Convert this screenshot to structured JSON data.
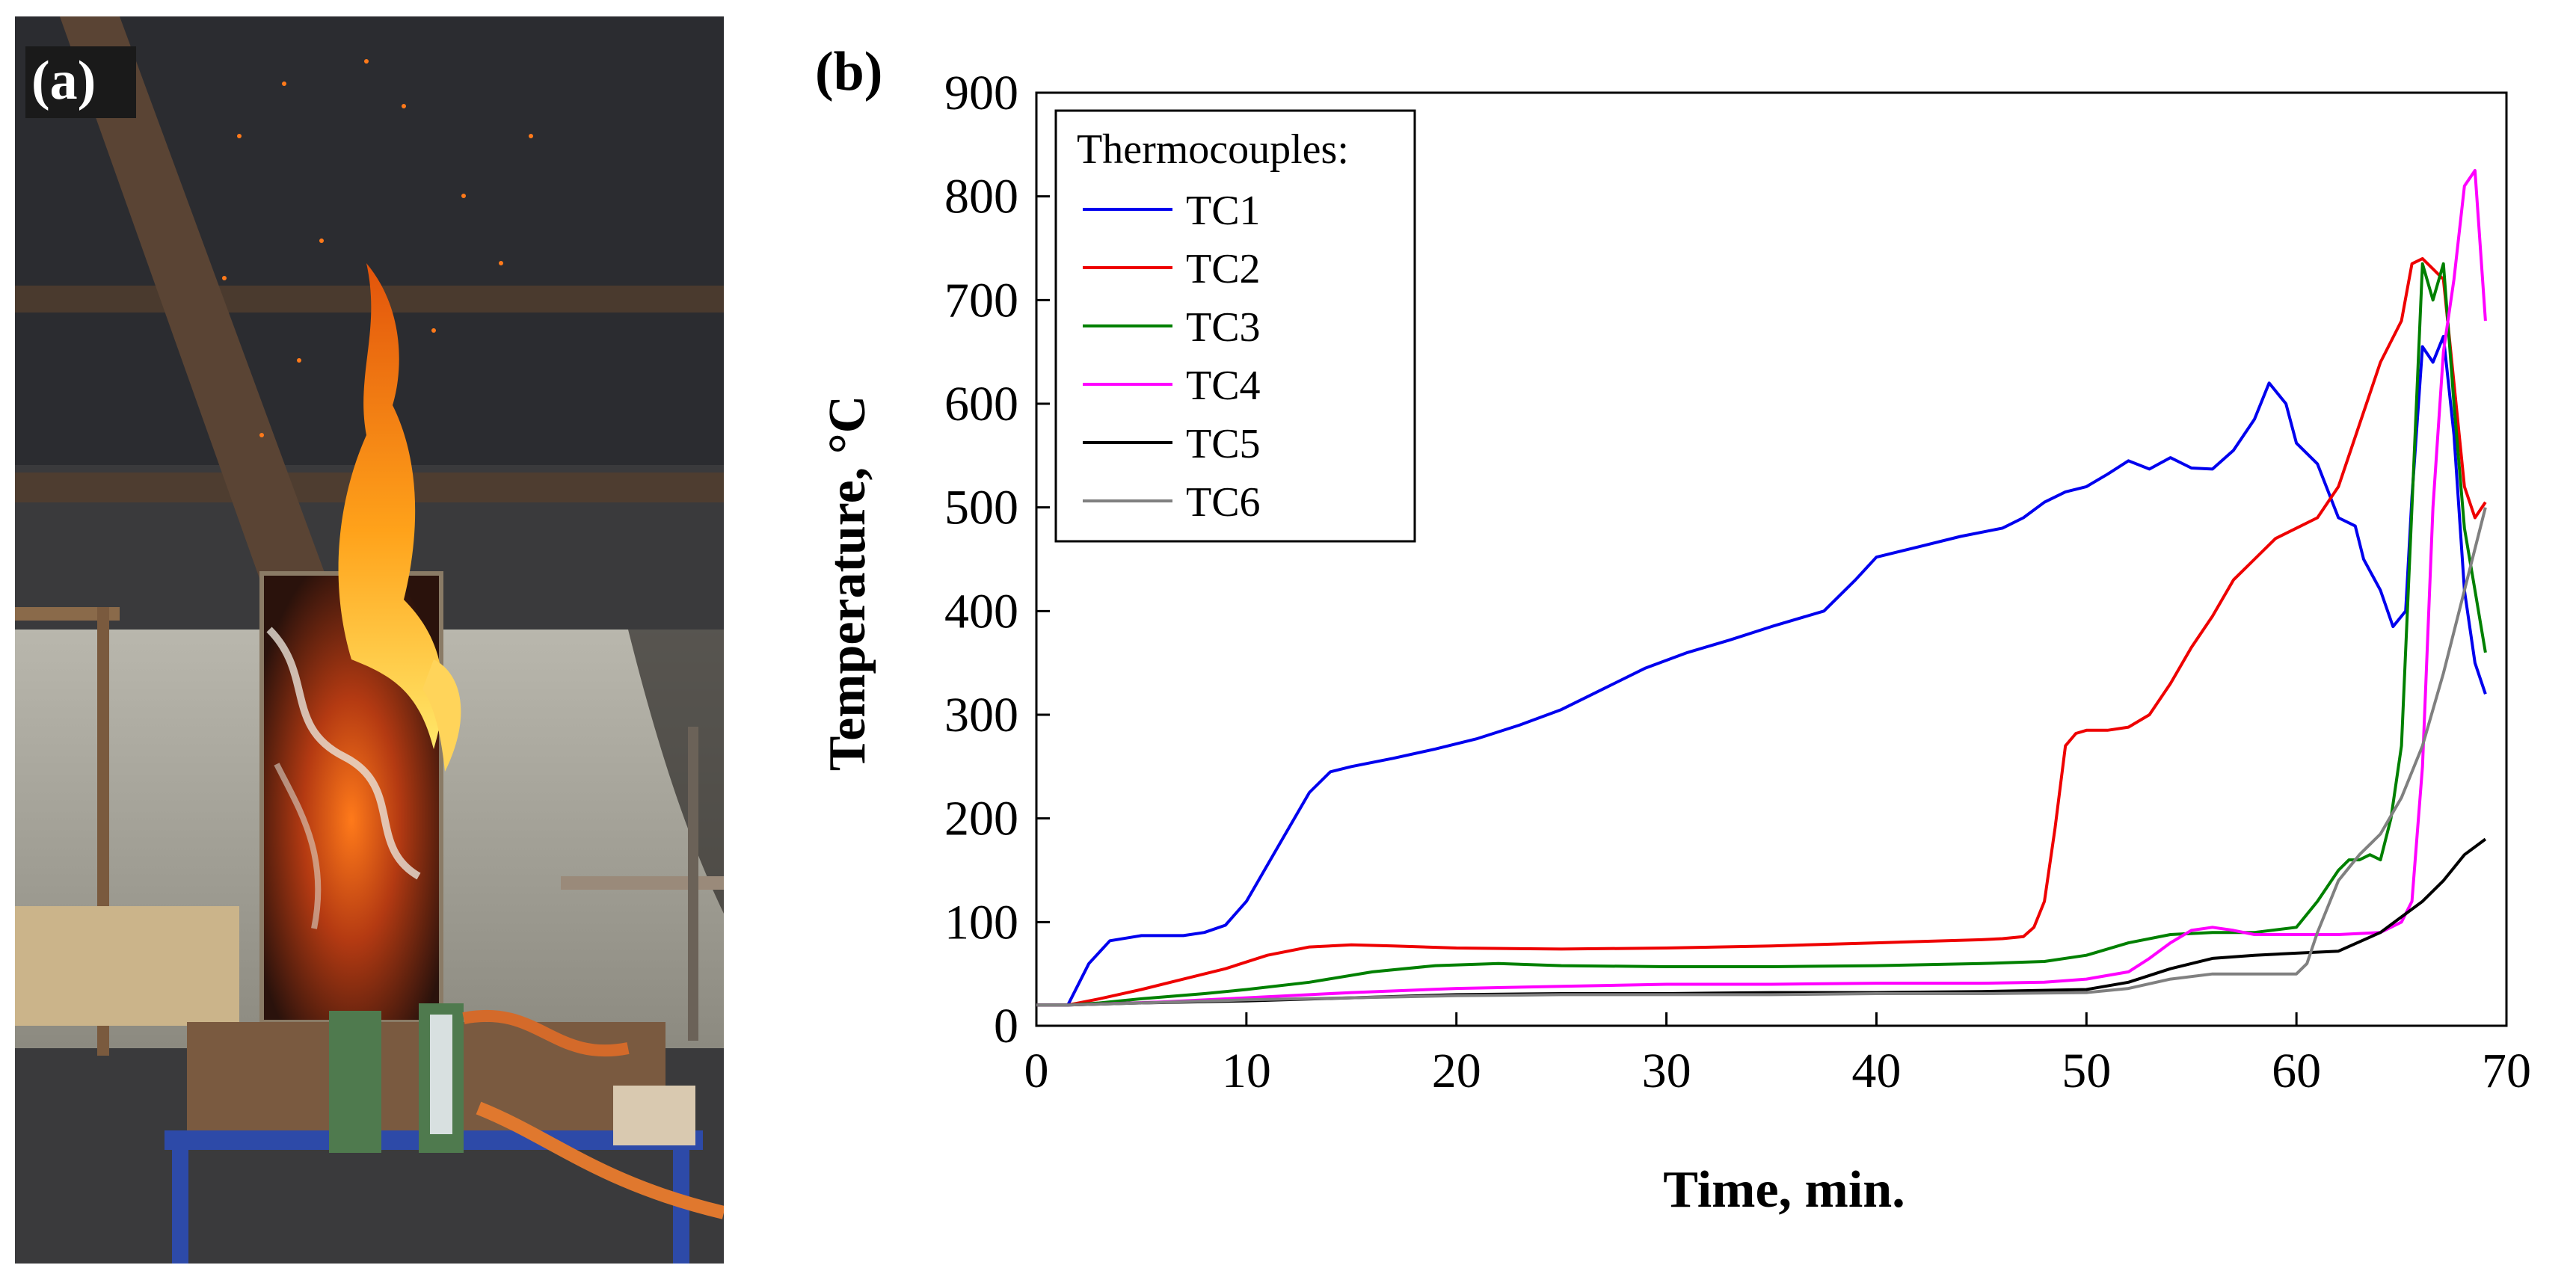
{
  "panel_a": {
    "label": "(a)"
  },
  "panel_b": {
    "label": "(b)"
  },
  "chart_data": {
    "type": "line",
    "title": "",
    "xlabel": "Time, min.",
    "ylabel": "Temperature, °C",
    "xlim": [
      0,
      70
    ],
    "ylim": [
      0,
      900
    ],
    "xticks": [
      0,
      10,
      20,
      30,
      40,
      50,
      60,
      70
    ],
    "yticks": [
      0,
      100,
      200,
      300,
      400,
      500,
      600,
      700,
      800,
      900
    ],
    "grid": false,
    "legend": {
      "title": "Thermocouples:",
      "position": "top-left"
    },
    "series": [
      {
        "name": "TC1",
        "color": "#0000ee",
        "x": [
          0,
          1.5,
          2.5,
          3.5,
          5,
          7,
          8,
          9,
          10,
          11,
          12,
          13,
          14,
          15,
          17,
          19,
          21,
          23,
          25,
          27,
          29,
          31,
          33,
          35,
          37.5,
          39,
          40,
          42,
          44,
          46,
          47,
          48,
          49,
          50,
          51,
          52,
          53,
          54,
          55,
          56,
          57,
          58,
          58.7,
          59.5,
          60,
          61,
          62,
          62.8,
          63.2,
          64,
          64.6,
          65.2,
          65.5,
          66,
          66.5,
          67,
          67.5,
          68,
          68.5,
          69
        ],
        "values": [
          20,
          20,
          60,
          82,
          87,
          87,
          90,
          97,
          120,
          155,
          190,
          225,
          245,
          250,
          258,
          267,
          277,
          290,
          305,
          325,
          345,
          360,
          372,
          385,
          400,
          430,
          452,
          462,
          472,
          480,
          490,
          505,
          515,
          520,
          532,
          545,
          537,
          548,
          538,
          537,
          555,
          585,
          620,
          600,
          562,
          542,
          490,
          482,
          450,
          420,
          385,
          400,
          510,
          655,
          640,
          665,
          570,
          420,
          350,
          320
        ]
      },
      {
        "name": "TC2",
        "color": "#ee0000",
        "x": [
          0,
          1.5,
          3,
          5,
          7,
          9,
          11,
          13,
          15,
          17,
          20,
          25,
          30,
          35,
          40,
          45,
          46,
          47,
          47.5,
          48,
          48.5,
          49,
          49.5,
          50,
          51,
          52,
          53,
          54,
          55,
          56,
          57,
          58,
          59,
          60,
          61,
          62,
          63,
          64,
          65,
          65.5,
          66,
          66.5,
          67,
          67.5,
          68,
          68.5,
          69
        ],
        "values": [
          20,
          20,
          26,
          35,
          45,
          55,
          68,
          76,
          78,
          77,
          75,
          74,
          75,
          77,
          80,
          83,
          84,
          86,
          95,
          120,
          190,
          270,
          282,
          285,
          285,
          288,
          300,
          330,
          365,
          395,
          430,
          450,
          470,
          480,
          490,
          520,
          580,
          640,
          680,
          735,
          740,
          730,
          720,
          620,
          520,
          490,
          505
        ]
      },
      {
        "name": "TC3",
        "color": "#008000",
        "x": [
          0,
          1.5,
          3,
          5,
          8,
          10,
          13,
          16,
          19,
          22,
          25,
          30,
          35,
          40,
          45,
          48,
          50,
          52,
          54,
          56,
          58,
          60,
          61,
          62,
          62.5,
          63,
          63.5,
          64,
          64.5,
          65,
          65.5,
          66,
          66.5,
          67,
          67.5,
          68,
          68.5,
          69
        ],
        "values": [
          20,
          20,
          22,
          26,
          31,
          35,
          42,
          52,
          58,
          60,
          58,
          57,
          57,
          58,
          60,
          62,
          68,
          80,
          88,
          90,
          90,
          95,
          120,
          150,
          160,
          160,
          165,
          160,
          200,
          270,
          500,
          735,
          700,
          735,
          600,
          480,
          420,
          360
        ]
      },
      {
        "name": "TC4",
        "color": "#ff00ff",
        "x": [
          0,
          1.5,
          3,
          6,
          10,
          15,
          20,
          25,
          30,
          35,
          40,
          45,
          48,
          50,
          52,
          53,
          54,
          55,
          56,
          57,
          58,
          60,
          62,
          64,
          65,
          65.5,
          66,
          66.5,
          67,
          67.5,
          68,
          68.5,
          69
        ],
        "values": [
          20,
          20,
          21,
          23,
          27,
          32,
          36,
          38,
          40,
          40,
          41,
          41,
          42,
          45,
          52,
          65,
          80,
          92,
          95,
          92,
          88,
          88,
          88,
          90,
          100,
          120,
          250,
          500,
          650,
          720,
          810,
          825,
          680
        ]
      },
      {
        "name": "TC5",
        "color": "#000000",
        "x": [
          0,
          1.5,
          5,
          10,
          15,
          20,
          25,
          30,
          35,
          40,
          45,
          50,
          52,
          54,
          56,
          58,
          60,
          62,
          64,
          65,
          66,
          67,
          68,
          69
        ],
        "values": [
          20,
          20,
          22,
          24,
          27,
          30,
          31,
          31,
          32,
          32,
          33,
          35,
          42,
          55,
          65,
          68,
          70,
          72,
          90,
          105,
          120,
          140,
          165,
          180
        ]
      },
      {
        "name": "TC6",
        "color": "#808080",
        "x": [
          0,
          1.5,
          5,
          10,
          15,
          20,
          25,
          30,
          35,
          40,
          45,
          50,
          52,
          54,
          56,
          58,
          60,
          60.5,
          61,
          62,
          63,
          64,
          65,
          66,
          67,
          68,
          69
        ],
        "values": [
          20,
          20,
          22,
          25,
          27,
          29,
          30,
          30,
          30,
          31,
          31,
          32,
          36,
          45,
          50,
          50,
          50,
          60,
          90,
          140,
          165,
          185,
          220,
          270,
          340,
          420,
          500
        ]
      }
    ]
  }
}
